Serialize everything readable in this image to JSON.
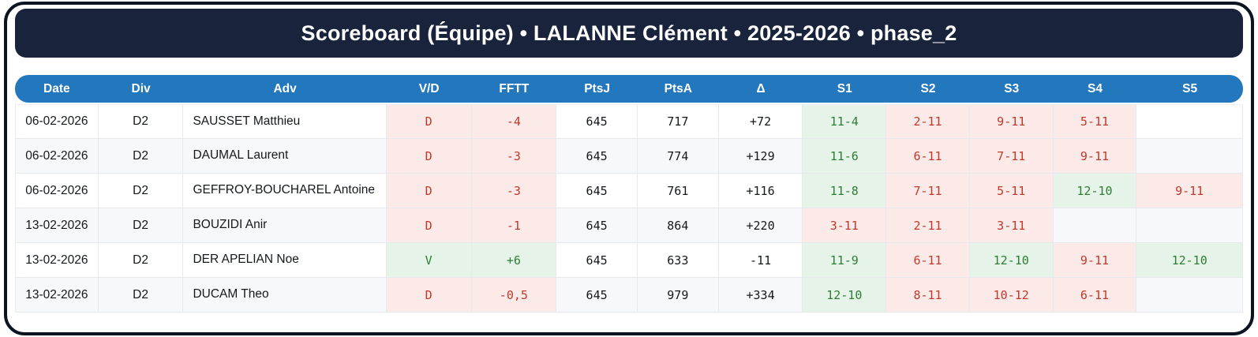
{
  "title": "Scoreboard (Équipe) • LALANNE Clément • 2025-2026 • phase_2",
  "colors": {
    "card_border": "#0c1322",
    "title_band_bg": "#19233b",
    "header_bg": "#2377bd",
    "win_text": "#2e7d32",
    "win_bg": "#e5f3e9",
    "loss_text": "#c0392b",
    "loss_bg": "#fceae8",
    "alt_row_bg": "#f7f8fc"
  },
  "table": {
    "columns": [
      "Date",
      "Div",
      "Adv",
      "V/D",
      "FFTT",
      "PtsJ",
      "PtsA",
      "Δ",
      "S1",
      "S2",
      "S3",
      "S4",
      "S5"
    ],
    "rows": [
      {
        "date": "06-02-2026",
        "div": "D2",
        "adv": "SAUSSET Matthieu",
        "vd": "D",
        "fftt": "-4",
        "ptsj": "645",
        "ptsa": "717",
        "delta": "+72",
        "sets": [
          "11-4",
          "2-11",
          "9-11",
          "5-11",
          ""
        ],
        "set_results": [
          "win",
          "loss",
          "loss",
          "loss",
          "none"
        ]
      },
      {
        "date": "06-02-2026",
        "div": "D2",
        "adv": "DAUMAL Laurent",
        "vd": "D",
        "fftt": "-3",
        "ptsj": "645",
        "ptsa": "774",
        "delta": "+129",
        "sets": [
          "11-6",
          "6-11",
          "7-11",
          "9-11",
          ""
        ],
        "set_results": [
          "win",
          "loss",
          "loss",
          "loss",
          "none"
        ]
      },
      {
        "date": "06-02-2026",
        "div": "D2",
        "adv": "GEFFROY-BOUCHAREL Antoine",
        "vd": "D",
        "fftt": "-3",
        "ptsj": "645",
        "ptsa": "761",
        "delta": "+116",
        "sets": [
          "11-8",
          "7-11",
          "5-11",
          "12-10",
          "9-11"
        ],
        "set_results": [
          "win",
          "loss",
          "loss",
          "win",
          "loss"
        ]
      },
      {
        "date": "13-02-2026",
        "div": "D2",
        "adv": "BOUZIDI Anir",
        "vd": "D",
        "fftt": "-1",
        "ptsj": "645",
        "ptsa": "864",
        "delta": "+220",
        "sets": [
          "3-11",
          "2-11",
          "3-11",
          "",
          ""
        ],
        "set_results": [
          "loss",
          "loss",
          "loss",
          "none",
          "none"
        ]
      },
      {
        "date": "13-02-2026",
        "div": "D2",
        "adv": "DER APELIAN Noe",
        "vd": "V",
        "fftt": "+6",
        "ptsj": "645",
        "ptsa": "633",
        "delta": "-11",
        "sets": [
          "11-9",
          "6-11",
          "12-10",
          "9-11",
          "12-10"
        ],
        "set_results": [
          "win",
          "loss",
          "win",
          "loss",
          "win"
        ]
      },
      {
        "date": "13-02-2026",
        "div": "D2",
        "adv": "DUCAM Theo",
        "vd": "D",
        "fftt": "-0,5",
        "ptsj": "645",
        "ptsa": "979",
        "delta": "+334",
        "sets": [
          "12-10",
          "8-11",
          "10-12",
          "6-11",
          ""
        ],
        "set_results": [
          "win",
          "loss",
          "loss",
          "loss",
          "none"
        ]
      }
    ]
  }
}
